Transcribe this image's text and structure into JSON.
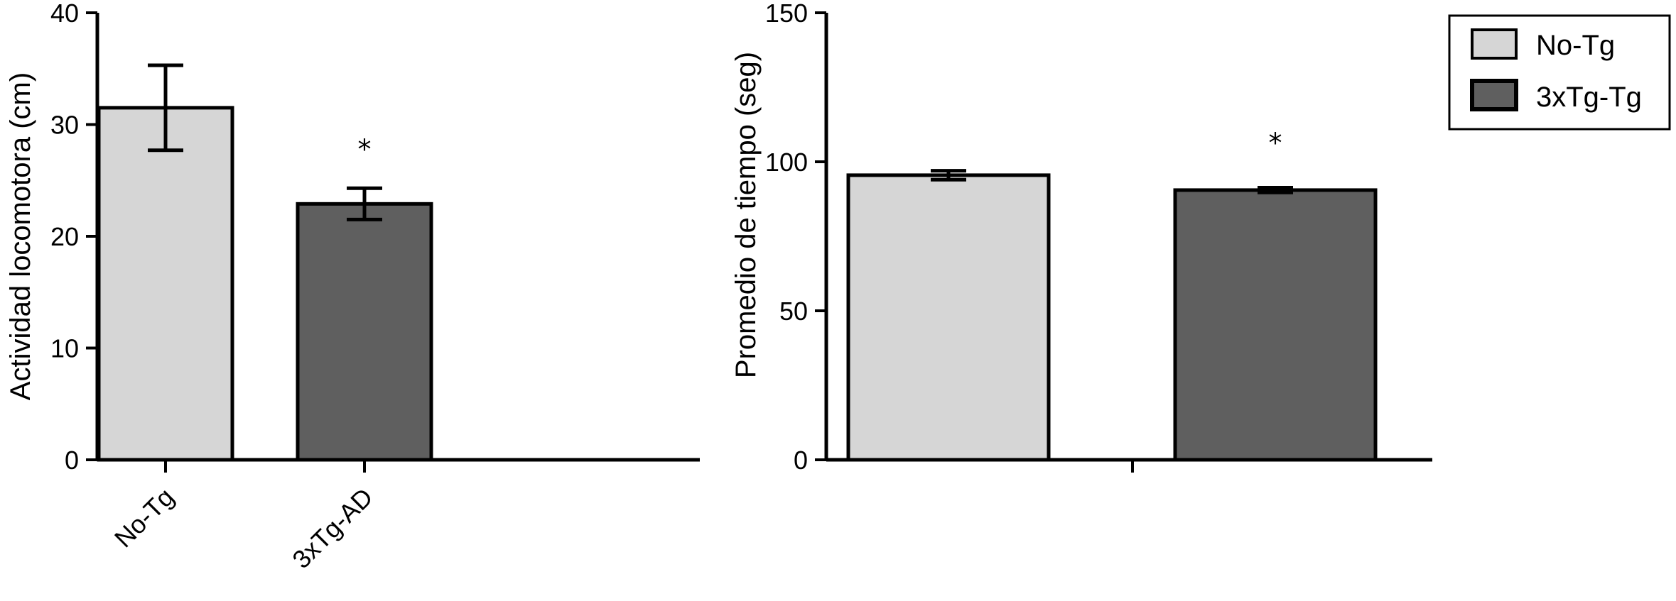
{
  "colors": {
    "no_tg": "#d6d6d6",
    "tg": "#5f5f5f",
    "axis": "#000000"
  },
  "legend": {
    "entries": [
      {
        "label": "No-Tg",
        "color": "#d6d6d6"
      },
      {
        "label": "3xTg-Tg",
        "color": "#5f5f5f"
      }
    ]
  },
  "chart_data": [
    {
      "type": "bar",
      "ylabel": "Actividad locomotora (cm)",
      "ylim": [
        0,
        40
      ],
      "yticks": [
        0,
        10,
        20,
        30,
        40
      ],
      "categories": [
        "No-Tg",
        "3xTg-AD"
      ],
      "values": [
        31.5,
        22.9
      ],
      "errors": [
        3.8,
        1.4
      ],
      "colors": [
        "#d6d6d6",
        "#5f5f5f"
      ],
      "significance": [
        "",
        "*"
      ]
    },
    {
      "type": "bar",
      "ylabel": "Promedio de tiempo (seg)",
      "ylim": [
        0,
        150
      ],
      "yticks": [
        0,
        50,
        100,
        150
      ],
      "categories": [
        "",
        ""
      ],
      "values": [
        95.5,
        90.5
      ],
      "errors": [
        1.5,
        0.8
      ],
      "colors": [
        "#d6d6d6",
        "#5f5f5f"
      ],
      "significance": [
        "",
        "*"
      ],
      "legend": "top-right"
    }
  ]
}
